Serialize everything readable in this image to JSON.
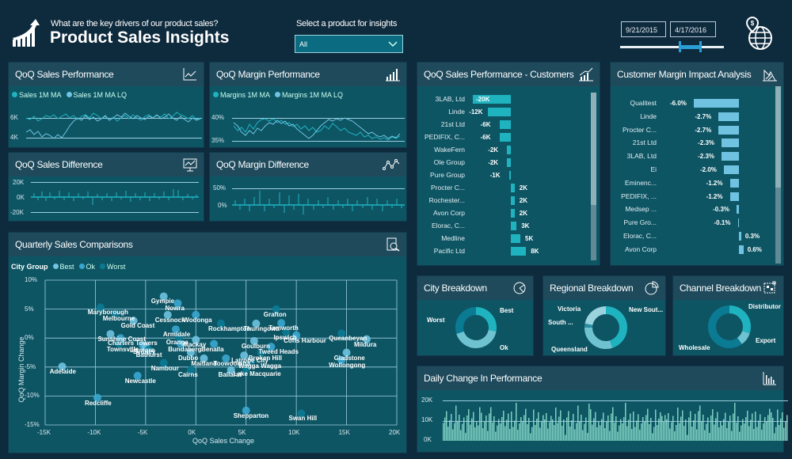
{
  "header": {
    "question": "What are the key drivers of our product sales?",
    "title": "Product Sales Insights",
    "select_label": "Select a product for insights",
    "select_value": "All",
    "date_start": "9/21/2015",
    "date_end": "4/17/2016"
  },
  "icons": {
    "logo": "growth-chart-arrow-icon",
    "globe": "globe-dollar-pin-icon"
  },
  "colors": {
    "background": "#0e2a3d",
    "panel": "#0e5564",
    "panel_header": "#1e4a5c",
    "accent_teal": "#1fb3c0",
    "accent_light": "#6fc3e0",
    "accent_dark": "#0b7a93"
  },
  "panels": {
    "sales_perf": {
      "title": "QoQ Sales Performance",
      "legend": [
        "Sales 1M MA",
        "Sales 1M MA LQ"
      ],
      "y_ticks": [
        "6K",
        "4K"
      ]
    },
    "margin_perf": {
      "title": "QoQ Margin Performance",
      "legend": [
        "Margins 1M MA",
        "Margins 1M MA LQ"
      ],
      "y_ticks": [
        "40%",
        "35%"
      ]
    },
    "sales_diff": {
      "title": "QoQ Sales Difference",
      "y_ticks": [
        "20K",
        "0K",
        "-20K"
      ]
    },
    "margin_diff": {
      "title": "QoQ Margin Difference",
      "y_ticks": [
        "50%",
        "0%"
      ]
    },
    "customers": {
      "title": "QoQ Sales Performance - Customers"
    },
    "margin_impact": {
      "title": "Customer Margin Impact Analysis"
    },
    "quarterly": {
      "title": "Quarterly Sales Comparisons",
      "legend_title": "City Group",
      "legend": [
        "Best",
        "Ok",
        "Worst"
      ],
      "x_label": "QoQ Sales Change",
      "y_label": "QoQ Margin Change"
    },
    "city": {
      "title": "City Breakdown",
      "labels": [
        "Best",
        "Worst",
        "Ok"
      ]
    },
    "regional": {
      "title": "Regional Breakdown",
      "labels": [
        "Victoria",
        "New Sout...",
        "South ...",
        "Queensland"
      ]
    },
    "channel": {
      "title": "Channel Breakdown",
      "labels": [
        "Distributor",
        "Export",
        "Wholesale"
      ]
    },
    "daily": {
      "title": "Daily Change In Performance",
      "y_ticks": [
        "20K",
        "10K",
        "0K"
      ]
    }
  },
  "chart_data": [
    {
      "type": "line",
      "title": "QoQ Sales Performance",
      "series": [
        {
          "name": "Sales 1M MA"
        },
        {
          "name": "Sales 1M MA LQ"
        }
      ],
      "ylim": [
        4000,
        6500
      ],
      "y_ticks": [
        "4K",
        "6K"
      ]
    },
    {
      "type": "line",
      "title": "QoQ Margin Performance",
      "series": [
        {
          "name": "Margins 1M MA"
        },
        {
          "name": "Margins 1M MA LQ"
        }
      ],
      "ylim": [
        35,
        40.5
      ],
      "y_ticks": [
        "35%",
        "40%"
      ]
    },
    {
      "type": "bar",
      "title": "QoQ Sales Performance - Customers",
      "categories": [
        "3LAB, Ltd",
        "Linde",
        "21st Ltd",
        "PEDIFIX, C...",
        "WakeFern",
        "Ole Group",
        "Pure Group",
        "Procter C...",
        "Rochester...",
        "Avon Corp",
        "Elorac, C...",
        "Medline",
        "Pacific Ltd"
      ],
      "values": [
        -20,
        -12,
        -6,
        -6,
        -2,
        -2,
        -1,
        2,
        2,
        2,
        3,
        5,
        8
      ],
      "labels": [
        "-20K",
        "-12K",
        "-6K",
        "-6K",
        "-2K",
        "-2K",
        "-1K",
        "2K",
        "2K",
        "2K",
        "3K",
        "5K",
        "8K"
      ],
      "orientation": "horizontal"
    },
    {
      "type": "bar",
      "title": "Customer Margin Impact Analysis",
      "categories": [
        "Qualitest",
        "Linde",
        "Procter C...",
        "21st Ltd",
        "3LAB, Ltd",
        "Ei",
        "Eminenc...",
        "PEDIFIX, ...",
        "Medsep ...",
        "Pure Gro...",
        "Elorac, C...",
        "Avon Corp"
      ],
      "values": [
        -6.0,
        -2.7,
        -2.7,
        -2.3,
        -2.3,
        -2.0,
        -1.2,
        -1.2,
        -0.3,
        -0.1,
        0.3,
        0.6
      ],
      "labels": [
        "-6.0%",
        "-2.7%",
        "-2.7%",
        "-2.3%",
        "-2.3%",
        "-2.0%",
        "-1.2%",
        "-1.2%",
        "-0.3%",
        "-0.1%",
        "0.3%",
        "0.6%"
      ],
      "orientation": "horizontal"
    },
    {
      "type": "scatter",
      "title": "Quarterly Sales Comparisons",
      "xlabel": "QoQ Sales Change",
      "ylabel": "QoQ Margin Change",
      "xlim": [
        -15000,
        20000
      ],
      "ylim": [
        -15,
        10
      ],
      "x_ticks": [
        "-15K",
        "-10K",
        "-5K",
        "0K",
        "5K",
        "10K",
        "15K",
        "20K"
      ],
      "y_ticks": [
        "10%",
        "5%",
        "0%",
        "-5%",
        "-10%",
        "-15%"
      ],
      "points": [
        {
          "name": "Gympie",
          "x": -3200,
          "y": 7.2
        },
        {
          "name": "Nowra",
          "x": -1800,
          "y": 6.0
        },
        {
          "name": "Maryborough",
          "x": -9500,
          "y": 5.3
        },
        {
          "name": "Cessnock",
          "x": -2800,
          "y": 4.0
        },
        {
          "name": "Wodonga",
          "x": 0,
          "y": 4.0
        },
        {
          "name": "Melbourne",
          "x": -8000,
          "y": 4.2
        },
        {
          "name": "Gold Coast",
          "x": -6200,
          "y": 3.0
        },
        {
          "name": "Armidale",
          "x": -2000,
          "y": 1.5
        },
        {
          "name": "Rockhampton",
          "x": 2500,
          "y": 2.5
        },
        {
          "name": "Sunshine Coast",
          "x": -8500,
          "y": 0.7
        },
        {
          "name": "Charters Towers",
          "x": -7500,
          "y": 0
        },
        {
          "name": "Orange",
          "x": -1700,
          "y": 0.2
        },
        {
          "name": "Mackay",
          "x": 0,
          "y": -0.3
        },
        {
          "name": "Lismore",
          "x": -5300,
          "y": -1.2
        },
        {
          "name": "Townsville",
          "x": -7600,
          "y": -1.0
        },
        {
          "name": "Sydney",
          "x": -5000,
          "y": -1.5
        },
        {
          "name": "Bundaberg",
          "x": -1500,
          "y": -1.0
        },
        {
          "name": "Bathurst",
          "x": -4700,
          "y": -2.0
        },
        {
          "name": "Dubbo",
          "x": -500,
          "y": -2.5
        },
        {
          "name": "Benalla",
          "x": 1800,
          "y": -1.0
        },
        {
          "name": "Nambour",
          "x": -3200,
          "y": -4.3
        },
        {
          "name": "Maitland",
          "x": 800,
          "y": -3.5
        },
        {
          "name": "Newcastle",
          "x": -5800,
          "y": -6.5
        },
        {
          "name": "Cairns",
          "x": -500,
          "y": -5.5
        },
        {
          "name": "Adelaide",
          "x": -13300,
          "y": -4.9
        },
        {
          "name": "Redcliffe",
          "x": -9800,
          "y": -10.3
        },
        {
          "name": "Grafton",
          "x": 8000,
          "y": 5.0
        },
        {
          "name": "Thuringowa",
          "x": 6000,
          "y": 2.5
        },
        {
          "name": "Tamworth",
          "x": 8500,
          "y": 2.6
        },
        {
          "name": "Ipswich",
          "x": 9000,
          "y": 1.0
        },
        {
          "name": "Goulburn",
          "x": 5800,
          "y": -0.5
        },
        {
          "name": "Coffs Harbour",
          "x": 10000,
          "y": 0.5
        },
        {
          "name": "Queanbeyan",
          "x": 14500,
          "y": 0.8
        },
        {
          "name": "Mildura",
          "x": 17000,
          "y": -0.2
        },
        {
          "name": "Tweed Heads",
          "x": 7500,
          "y": -1.5
        },
        {
          "name": "Broken Hill",
          "x": 6500,
          "y": -2.5
        },
        {
          "name": "Latrobe City",
          "x": 4800,
          "y": -3.0
        },
        {
          "name": "Toowoomba",
          "x": 3000,
          "y": -3.5
        },
        {
          "name": "Wagga Wagga",
          "x": 5500,
          "y": -4.0
        },
        {
          "name": "Gladstone",
          "x": 15000,
          "y": -2.5
        },
        {
          "name": "Wollongong",
          "x": 14500,
          "y": -3.8
        },
        {
          "name": "Lake Macquarie",
          "x": 5000,
          "y": -5.3
        },
        {
          "name": "Ballarat",
          "x": 3500,
          "y": -5.5
        },
        {
          "name": "Shepparton",
          "x": 5000,
          "y": -12.5
        },
        {
          "name": "Swan Hill",
          "x": 10500,
          "y": -13.0
        }
      ]
    },
    {
      "type": "pie",
      "title": "City Breakdown",
      "categories": [
        "Best",
        "Ok",
        "Worst"
      ],
      "values": [
        28,
        42,
        30
      ]
    },
    {
      "type": "pie",
      "title": "Regional Breakdown",
      "categories": [
        "New Sout...",
        "Queensland",
        "South ...",
        "Victoria"
      ],
      "values": [
        45,
        30,
        3,
        22
      ]
    },
    {
      "type": "pie",
      "title": "Channel Breakdown",
      "categories": [
        "Distributor",
        "Export",
        "Wholesale"
      ],
      "values": [
        30,
        10,
        60
      ]
    },
    {
      "type": "bar",
      "title": "Daily Change In Performance",
      "ylim": [
        0,
        20000
      ],
      "y_ticks": [
        "0K",
        "10K",
        "20K"
      ]
    }
  ]
}
